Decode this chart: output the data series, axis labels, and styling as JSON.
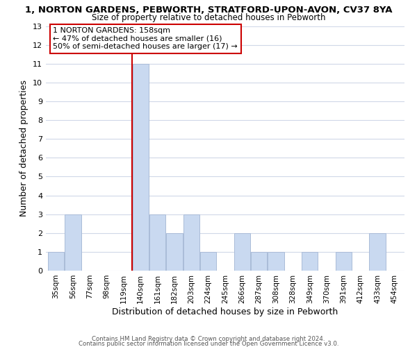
{
  "title_line1": "1, NORTON GARDENS, PEBWORTH, STRATFORD-UPON-AVON, CV37 8YA",
  "title_line2": "Size of property relative to detached houses in Pebworth",
  "xlabel": "Distribution of detached houses by size in Pebworth",
  "ylabel": "Number of detached properties",
  "bar_labels": [
    "35sqm",
    "56sqm",
    "77sqm",
    "98sqm",
    "119sqm",
    "140sqm",
    "161sqm",
    "182sqm",
    "203sqm",
    "224sqm",
    "245sqm",
    "266sqm",
    "287sqm",
    "308sqm",
    "328sqm",
    "349sqm",
    "370sqm",
    "391sqm",
    "412sqm",
    "433sqm",
    "454sqm"
  ],
  "bar_values": [
    1,
    3,
    0,
    0,
    0,
    11,
    3,
    2,
    3,
    1,
    0,
    2,
    1,
    1,
    0,
    1,
    0,
    1,
    0,
    2,
    0
  ],
  "bar_color": "#c9d9f0",
  "bar_edge_color": "#aabcd8",
  "vline_x_index": 5,
  "vline_color": "#cc0000",
  "annotation_text": "1 NORTON GARDENS: 158sqm\n← 47% of detached houses are smaller (16)\n50% of semi-detached houses are larger (17) →",
  "annotation_box_color": "#ffffff",
  "annotation_box_edge": "#cc0000",
  "ylim": [
    0,
    13
  ],
  "yticks": [
    0,
    1,
    2,
    3,
    4,
    5,
    6,
    7,
    8,
    9,
    10,
    11,
    12,
    13
  ],
  "footer_line1": "Contains HM Land Registry data © Crown copyright and database right 2024.",
  "footer_line2": "Contains public sector information licensed under the Open Government Licence v3.0.",
  "bg_color": "#ffffff",
  "grid_color": "#d0d8e8"
}
